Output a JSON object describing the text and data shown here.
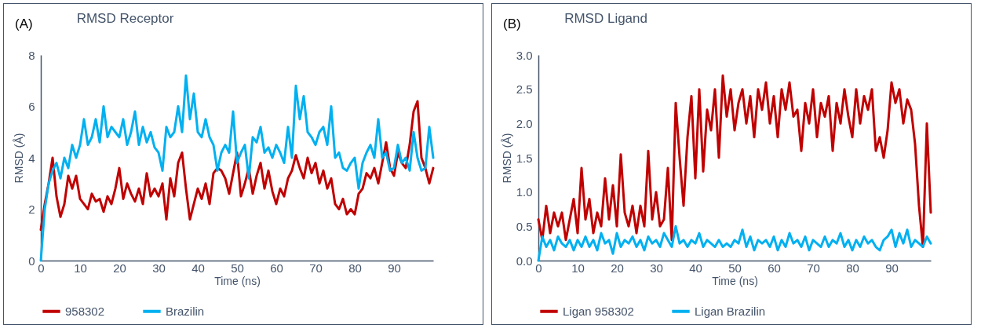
{
  "chart_data": [
    {
      "type": "line",
      "title": "RMSD Receptor",
      "xlabel": "Time (ns)",
      "ylabel": "RMSD (Å)",
      "annotations": [
        "(A)"
      ],
      "legend": "bottom",
      "grid": false,
      "xlim": [
        0,
        100
      ],
      "xticks": [
        0,
        10,
        20,
        30,
        40,
        50,
        60,
        70,
        80,
        90
      ],
      "ylim": [
        0,
        8
      ],
      "yticks": [
        0,
        2,
        4,
        6,
        8
      ],
      "x": [
        0,
        1,
        2,
        3,
        4,
        5,
        6,
        7,
        8,
        9,
        10,
        11,
        12,
        13,
        14,
        15,
        16,
        17,
        18,
        19,
        20,
        21,
        22,
        23,
        24,
        25,
        26,
        27,
        28,
        29,
        30,
        31,
        32,
        33,
        34,
        35,
        36,
        37,
        38,
        39,
        40,
        41,
        42,
        43,
        44,
        45,
        46,
        47,
        48,
        49,
        50,
        51,
        52,
        53,
        54,
        55,
        56,
        57,
        58,
        59,
        60,
        61,
        62,
        63,
        64,
        65,
        66,
        67,
        68,
        69,
        70,
        71,
        72,
        73,
        74,
        75,
        76,
        77,
        78,
        79,
        80,
        81,
        82,
        83,
        84,
        85,
        86,
        87,
        88,
        89,
        90,
        91,
        92,
        93,
        94,
        95,
        96,
        97,
        98,
        99,
        100
      ],
      "series": [
        {
          "name": "958302",
          "color": "#c00000",
          "values": [
            1.2,
            2.2,
            3.0,
            4.0,
            2.5,
            1.7,
            2.2,
            3.3,
            2.8,
            3.3,
            2.4,
            2.2,
            2.0,
            2.6,
            2.3,
            2.4,
            1.9,
            2.5,
            2.2,
            2.8,
            3.6,
            2.4,
            3.0,
            2.6,
            2.3,
            2.8,
            2.2,
            3.4,
            2.5,
            2.8,
            2.5,
            3.0,
            1.6,
            3.2,
            2.5,
            3.8,
            4.2,
            2.8,
            1.6,
            2.2,
            2.8,
            2.4,
            3.0,
            2.2,
            3.4,
            3.6,
            3.5,
            3.2,
            2.6,
            3.4,
            4.2,
            2.5,
            3.0,
            3.6,
            2.6,
            3.3,
            3.8,
            2.8,
            3.5,
            2.7,
            2.2,
            2.8,
            2.5,
            3.2,
            3.5,
            4.1,
            3.6,
            3.2,
            4.0,
            3.4,
            3.8,
            3.0,
            3.5,
            2.8,
            3.2,
            2.2,
            2.0,
            2.4,
            1.8,
            2.0,
            1.8,
            2.6,
            2.8,
            3.4,
            3.2,
            3.6,
            3.0,
            3.8,
            4.6,
            3.6,
            3.3,
            4.2,
            3.8,
            3.6,
            4.5,
            5.8,
            6.2,
            4.0,
            3.6,
            3.0,
            3.6
          ]
        },
        {
          "name": "Brazilin",
          "color": "#00b0f0",
          "values": [
            0,
            2.0,
            3.0,
            3.5,
            3.8,
            3.2,
            4.0,
            3.6,
            4.5,
            4.0,
            4.5,
            5.5,
            4.5,
            4.8,
            5.5,
            4.6,
            6.0,
            4.8,
            5.2,
            5.0,
            4.8,
            5.5,
            4.5,
            5.0,
            5.8,
            4.5,
            5.2,
            4.6,
            5.0,
            4.4,
            4.2,
            3.5,
            5.2,
            4.8,
            5.0,
            6.0,
            5.0,
            7.2,
            5.5,
            6.5,
            5.0,
            4.8,
            5.5,
            4.8,
            4.5,
            3.5,
            4.2,
            4.5,
            4.2,
            5.8,
            3.8,
            4.2,
            4.5,
            3.2,
            4.8,
            4.6,
            5.2,
            4.2,
            4.4,
            4.0,
            4.5,
            4.2,
            3.8,
            5.2,
            4.0,
            6.8,
            5.5,
            6.4,
            5.0,
            4.8,
            4.5,
            5.0,
            5.2,
            4.5,
            6.0,
            4.0,
            4.2,
            3.6,
            3.5,
            3.8,
            4.0,
            2.8,
            3.8,
            4.2,
            4.5,
            4.0,
            5.5,
            4.0,
            4.2,
            3.5,
            3.6,
            4.5,
            3.8,
            4.0,
            3.5,
            5.0,
            4.0,
            3.5,
            3.6,
            5.2,
            4.0
          ]
        }
      ]
    },
    {
      "type": "line",
      "title": "RMSD Ligand",
      "xlabel": "Time (ns)",
      "ylabel": "RMSD (Å)",
      "annotations": [
        "(B)"
      ],
      "legend": "bottom",
      "grid": false,
      "xlim": [
        0,
        100
      ],
      "xticks": [
        0,
        10,
        20,
        30,
        40,
        50,
        60,
        70,
        80,
        90
      ],
      "ylim": [
        0,
        3
      ],
      "yticks": [
        {
          "value": 0,
          "label": "0.0"
        },
        0.5,
        {
          "value": 1,
          "label": "1.0"
        },
        1.5,
        {
          "value": 2,
          "label": "2.0"
        },
        2.5,
        {
          "value": 3,
          "label": "3.0"
        }
      ],
      "x": [
        0,
        1,
        2,
        3,
        4,
        5,
        6,
        7,
        8,
        9,
        10,
        11,
        12,
        13,
        14,
        15,
        16,
        17,
        18,
        19,
        20,
        21,
        22,
        23,
        24,
        25,
        26,
        27,
        28,
        29,
        30,
        31,
        32,
        33,
        34,
        35,
        36,
        37,
        38,
        39,
        40,
        41,
        42,
        43,
        44,
        45,
        46,
        47,
        48,
        49,
        50,
        51,
        52,
        53,
        54,
        55,
        56,
        57,
        58,
        59,
        60,
        61,
        62,
        63,
        64,
        65,
        66,
        67,
        68,
        69,
        70,
        71,
        72,
        73,
        74,
        75,
        76,
        77,
        78,
        79,
        80,
        81,
        82,
        83,
        84,
        85,
        86,
        87,
        88,
        89,
        90,
        91,
        92,
        93,
        94,
        95,
        96,
        97,
        98,
        99,
        100
      ],
      "series": [
        {
          "name": "Ligan 958302",
          "color": "#c00000",
          "values": [
            0.6,
            0.3,
            0.8,
            0.4,
            0.7,
            0.5,
            0.7,
            0.3,
            0.6,
            0.9,
            0.4,
            1.35,
            0.6,
            0.9,
            0.4,
            0.7,
            0.5,
            1.2,
            0.6,
            1.1,
            0.5,
            1.55,
            0.7,
            0.5,
            0.8,
            0.4,
            0.8,
            0.5,
            1.6,
            0.6,
            1.0,
            0.5,
            0.6,
            1.35,
            0.3,
            2.3,
            1.5,
            0.8,
            1.8,
            2.4,
            1.2,
            2.5,
            1.3,
            2.2,
            1.9,
            2.5,
            1.5,
            2.7,
            2.1,
            2.5,
            1.9,
            2.3,
            2.5,
            2.0,
            2.4,
            1.8,
            2.5,
            2.2,
            2.6,
            2.0,
            2.4,
            1.8,
            2.5,
            2.2,
            2.6,
            2.1,
            2.2,
            1.6,
            2.3,
            2.0,
            2.5,
            1.8,
            2.3,
            2.1,
            2.4,
            1.6,
            2.3,
            2.0,
            2.5,
            2.1,
            1.8,
            2.5,
            2.0,
            2.4,
            2.2,
            2.5,
            1.6,
            1.8,
            1.5,
            1.9,
            2.6,
            2.3,
            2.5,
            2.0,
            2.35,
            2.2,
            1.7,
            0.8,
            0.2,
            2.0,
            0.7
          ]
        },
        {
          "name": "Ligan Brazilin",
          "color": "#00b0f0",
          "values": [
            0,
            0.35,
            0.2,
            0.3,
            0.15,
            0.35,
            0.25,
            0.2,
            0.3,
            0.15,
            0.3,
            0.2,
            0.35,
            0.2,
            0.3,
            0.15,
            0.4,
            0.25,
            0.3,
            0.1,
            0.4,
            0.2,
            0.3,
            0.25,
            0.35,
            0.2,
            0.3,
            0.15,
            0.35,
            0.25,
            0.3,
            0.2,
            0.4,
            0.3,
            0.2,
            0.5,
            0.25,
            0.3,
            0.2,
            0.3,
            0.25,
            0.4,
            0.2,
            0.3,
            0.25,
            0.2,
            0.3,
            0.2,
            0.25,
            0.2,
            0.3,
            0.25,
            0.45,
            0.2,
            0.35,
            0.15,
            0.3,
            0.25,
            0.3,
            0.2,
            0.35,
            0.15,
            0.3,
            0.2,
            0.4,
            0.25,
            0.3,
            0.2,
            0.35,
            0.15,
            0.3,
            0.25,
            0.2,
            0.35,
            0.2,
            0.3,
            0.25,
            0.4,
            0.2,
            0.3,
            0.15,
            0.3,
            0.2,
            0.35,
            0.25,
            0.3,
            0.2,
            0.15,
            0.3,
            0.35,
            0.45,
            0.2,
            0.4,
            0.25,
            0.45,
            0.2,
            0.3,
            0.25,
            0.2,
            0.35,
            0.25
          ]
        }
      ]
    }
  ]
}
